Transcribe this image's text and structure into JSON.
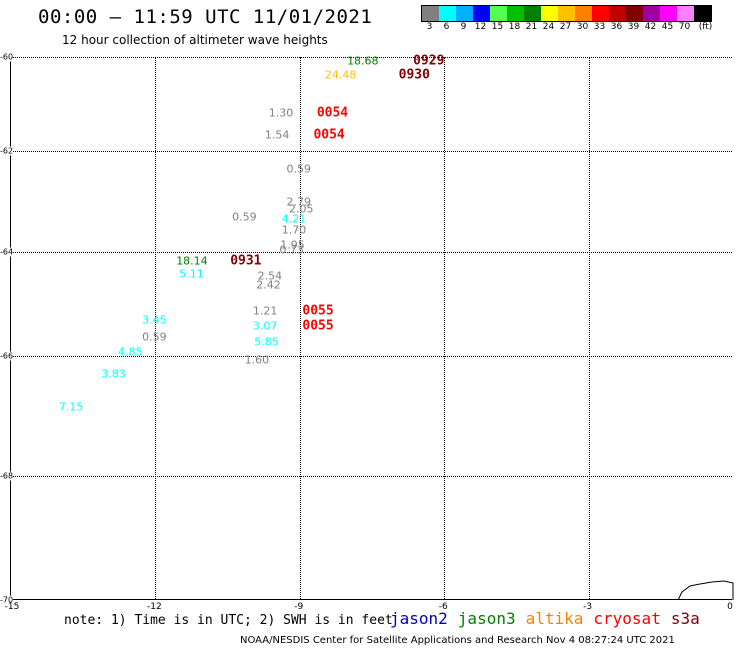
{
  "header": {
    "title": "00:00 – 11:59 UTC 11/01/2021",
    "subtitle": "12 hour collection of altimeter wave heights"
  },
  "colorbar": {
    "colors": [
      "#808080",
      "#00ffff",
      "#00b0ff",
      "#0000ff",
      "#50ff50",
      "#00c000",
      "#008000",
      "#ffff00",
      "#ffc000",
      "#ff8000",
      "#ff0000",
      "#c00000",
      "#800000",
      "#a000a0",
      "#ff00ff",
      "#ff80ff",
      "#000000"
    ],
    "labels": [
      "3",
      "6",
      "9",
      "12",
      "15",
      "18",
      "21",
      "24",
      "27",
      "30",
      "33",
      "36",
      "39",
      "42",
      "45",
      "70",
      "(ft)"
    ]
  },
  "axes": {
    "lat_labels": [
      "-60",
      "-62",
      "-64",
      "-66",
      "-68",
      "-70"
    ],
    "lon_labels": [
      "-15",
      "-12",
      "-9",
      "-6",
      "-3",
      "0"
    ]
  },
  "observations": [
    {
      "text": "18.68",
      "color": "#008000",
      "lon": -7.67,
      "lat": -60.08,
      "kind": "value"
    },
    {
      "text": "0929",
      "color": "#800000",
      "lon": -6.3,
      "lat": -60.08,
      "kind": "time"
    },
    {
      "text": "24.48",
      "color": "#ffc000",
      "lon": -8.13,
      "lat": -60.38,
      "kind": "value"
    },
    {
      "text": "0930",
      "color": "#800000",
      "lon": -6.6,
      "lat": -60.38,
      "kind": "time"
    },
    {
      "text": "1.30",
      "color": "#808080",
      "lon": -9.37,
      "lat": -61.2,
      "kind": "value"
    },
    {
      "text": "0054",
      "color": "#ff0000",
      "lon": -8.3,
      "lat": -61.2,
      "kind": "time"
    },
    {
      "text": "1.54",
      "color": "#808080",
      "lon": -9.45,
      "lat": -61.65,
      "kind": "value"
    },
    {
      "text": "0054",
      "color": "#ff0000",
      "lon": -8.37,
      "lat": -61.65,
      "kind": "time"
    },
    {
      "text": "0.59",
      "color": "#808080",
      "lon": -9.0,
      "lat": -62.35,
      "kind": "value"
    },
    {
      "text": "2.79",
      "color": "#808080",
      "lon": -9.0,
      "lat": -63.0,
      "kind": "value"
    },
    {
      "text": "2.05",
      "color": "#808080",
      "lon": -8.95,
      "lat": -63.15,
      "kind": "value"
    },
    {
      "text": "0.59",
      "color": "#808080",
      "lon": -10.13,
      "lat": -63.3,
      "kind": "value"
    },
    {
      "text": "4.21",
      "color": "#00ffff",
      "lon": -9.1,
      "lat": -63.35,
      "kind": "value"
    },
    {
      "text": "1.70",
      "color": "#808080",
      "lon": -9.1,
      "lat": -63.57,
      "kind": "value"
    },
    {
      "text": "1.95",
      "color": "#808080",
      "lon": -9.13,
      "lat": -63.87,
      "kind": "value"
    },
    {
      "text": "0.73",
      "color": "#808080",
      "lon": -9.15,
      "lat": -63.97,
      "kind": "value"
    },
    {
      "text": "18.14",
      "color": "#008000",
      "lon": -11.22,
      "lat": -64.17,
      "kind": "value"
    },
    {
      "text": "0931",
      "color": "#800000",
      "lon": -10.1,
      "lat": -64.17,
      "kind": "time"
    },
    {
      "text": "5.11",
      "color": "#00ffff",
      "lon": -11.23,
      "lat": -64.43,
      "kind": "value"
    },
    {
      "text": "2.54",
      "color": "#808080",
      "lon": -9.6,
      "lat": -64.47,
      "kind": "value"
    },
    {
      "text": "2.42",
      "color": "#808080",
      "lon": -9.63,
      "lat": -64.63,
      "kind": "value"
    },
    {
      "text": "1.21",
      "color": "#808080",
      "lon": -9.7,
      "lat": -65.13,
      "kind": "value"
    },
    {
      "text": "0055",
      "color": "#ff0000",
      "lon": -8.6,
      "lat": -65.13,
      "kind": "time"
    },
    {
      "text": "3.45",
      "color": "#00ffff",
      "lon": -12.0,
      "lat": -65.3,
      "kind": "value"
    },
    {
      "text": "3.07",
      "color": "#00ffff",
      "lon": -9.7,
      "lat": -65.43,
      "kind": "value"
    },
    {
      "text": "0055",
      "color": "#ff0000",
      "lon": -8.6,
      "lat": -65.43,
      "kind": "time"
    },
    {
      "text": "0.59",
      "color": "#808080",
      "lon": -12.0,
      "lat": -65.63,
      "kind": "value"
    },
    {
      "text": "5.85",
      "color": "#00ffff",
      "lon": -9.67,
      "lat": -65.73,
      "kind": "value"
    },
    {
      "text": "4.85",
      "color": "#00ffff",
      "lon": -12.5,
      "lat": -65.93,
      "kind": "value"
    },
    {
      "text": "1.60",
      "color": "#808080",
      "lon": -9.87,
      "lat": -66.07,
      "kind": "value"
    },
    {
      "text": "3.83",
      "color": "#00ffff",
      "lon": -12.85,
      "lat": -66.3,
      "kind": "value"
    },
    {
      "text": "7.15",
      "color": "#00ffff",
      "lon": -13.73,
      "lat": -66.85,
      "kind": "value"
    }
  ],
  "footer": {
    "note": "note: 1) Time is in UTC; 2) SWH is in feet",
    "credit": "NOAA/NESDIS Center for Satellite Applications and Research    Nov  4 08:27:24 UTC 2021",
    "missions": [
      {
        "name": "jason2",
        "color": "#0000c0"
      },
      {
        "name": "jason3",
        "color": "#008000"
      },
      {
        "name": "altika",
        "color": "#ff8000"
      },
      {
        "name": "cryosat",
        "color": "#ff0000"
      },
      {
        "name": "s3a",
        "color": "#800000"
      }
    ]
  }
}
